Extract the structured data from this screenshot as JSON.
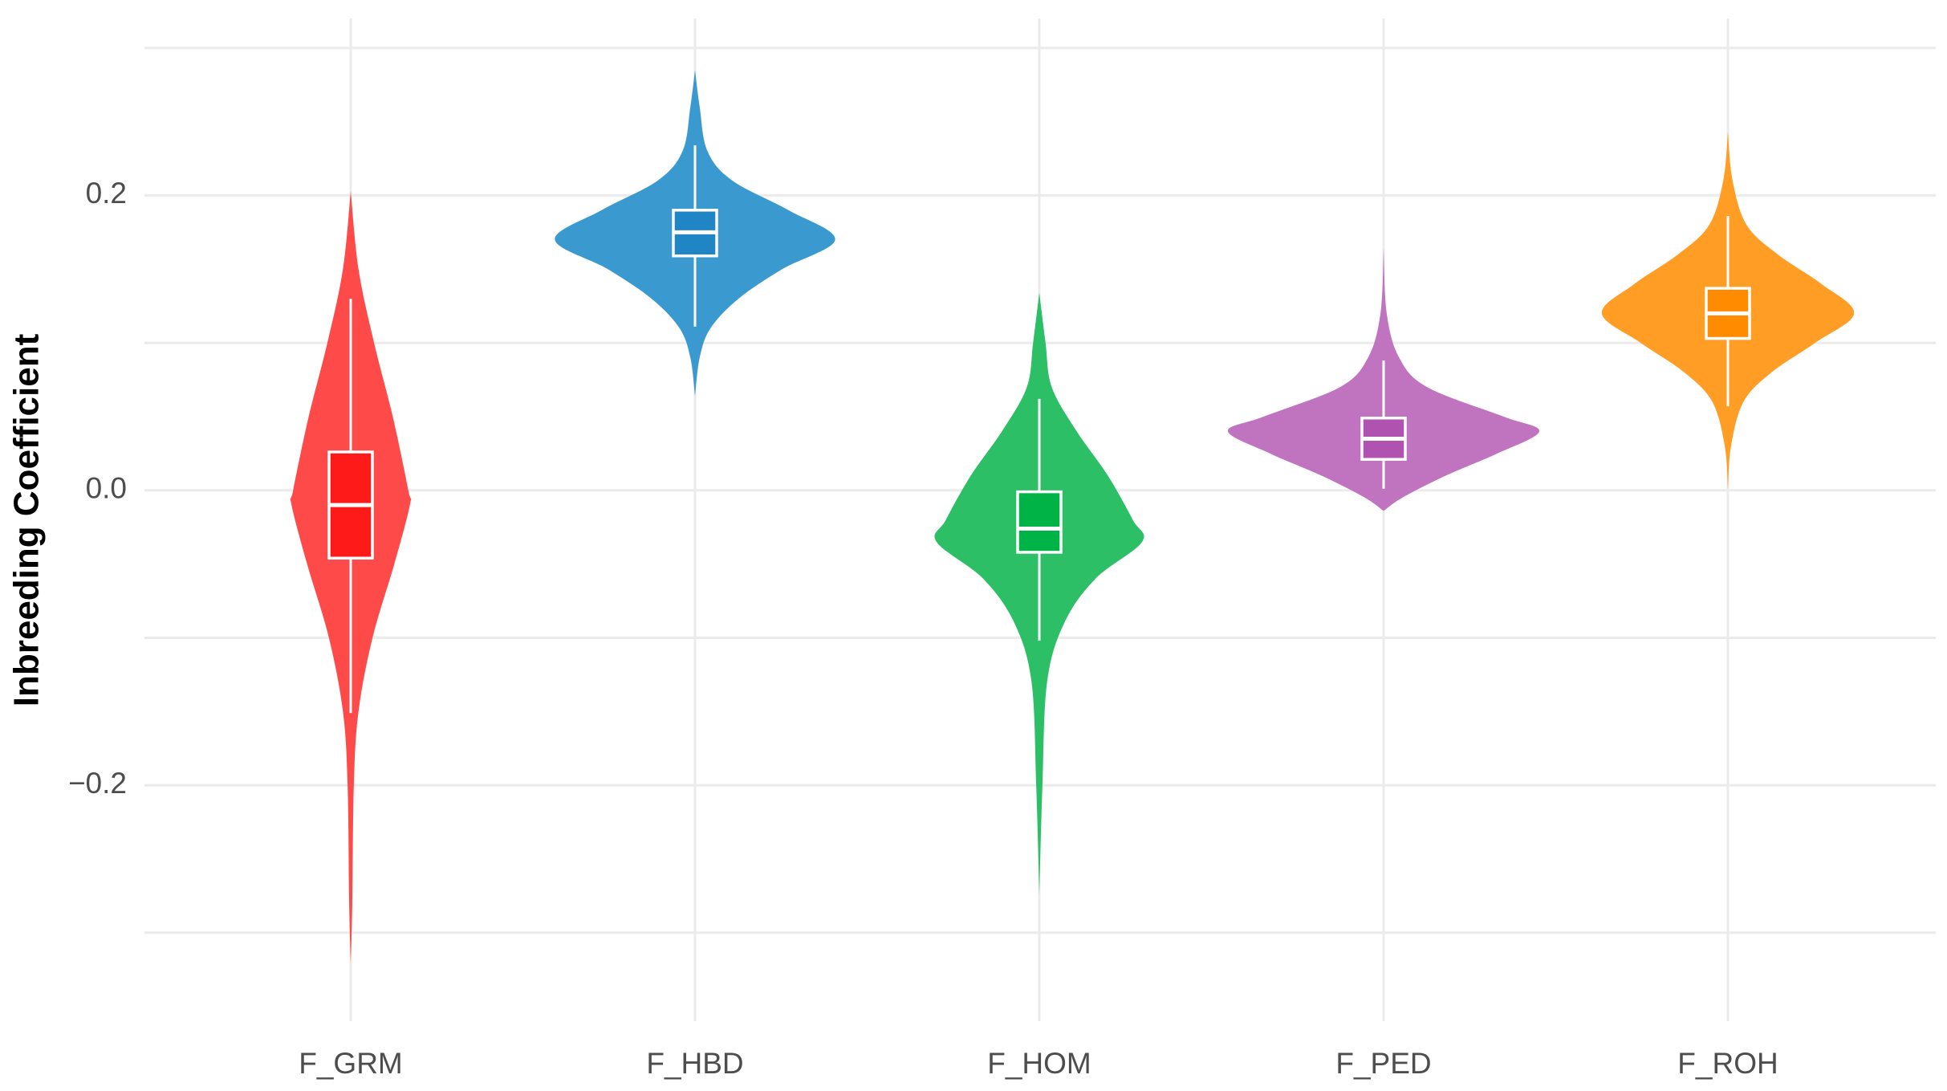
{
  "chart_data": {
    "type": "violin",
    "y_label": "Inbreeding Coefficient",
    "categories": [
      "F_GRM",
      "F_HBD",
      "F_HOM",
      "F_PED",
      "F_ROH"
    ],
    "colors": [
      "#ff4a4a",
      "#3a9ad0",
      "#2dbf66",
      "#c074c0",
      "#ff9d25"
    ],
    "box_colors": [
      "#ff1a1a",
      "#1f85c4",
      "#00b347",
      "#b052b0",
      "#ff8c00"
    ],
    "whisker_high": [
      0.13,
      0.234,
      0.062,
      0.088,
      0.186
    ],
    "q3": [
      0.026,
      0.19,
      -0.001,
      0.049,
      0.137
    ],
    "median": [
      -0.01,
      0.175,
      -0.026,
      0.035,
      0.12
    ],
    "q1": [
      -0.046,
      0.159,
      -0.042,
      0.021,
      0.103
    ],
    "whisker_low": [
      -0.151,
      0.111,
      -0.102,
      0.001,
      0.057
    ],
    "density_y": [
      [
        0.203,
        0.15,
        0.1,
        0.05,
        0.0,
        -0.01,
        -0.05,
        -0.1,
        -0.15,
        -0.2,
        -0.28,
        -0.321
      ],
      [
        0.285,
        0.26,
        0.23,
        0.21,
        0.19,
        0.17,
        0.15,
        0.13,
        0.11,
        0.09,
        0.064
      ],
      [
        0.134,
        0.1,
        0.07,
        0.04,
        0.01,
        -0.02,
        -0.035,
        -0.06,
        -0.09,
        -0.13,
        -0.2,
        -0.274
      ],
      [
        0.164,
        0.12,
        0.09,
        0.07,
        0.05,
        0.04,
        0.025,
        0.01,
        -0.005,
        -0.014
      ],
      [
        0.243,
        0.21,
        0.18,
        0.16,
        0.14,
        0.12,
        0.1,
        0.08,
        0.06,
        0.03,
        0.001
      ]
    ],
    "density": [
      [
        0,
        0.05,
        0.15,
        0.27,
        0.37,
        0.38,
        0.28,
        0.14,
        0.05,
        0.02,
        0.01,
        0
      ],
      [
        0,
        0.03,
        0.08,
        0.24,
        0.6,
        0.9,
        0.56,
        0.28,
        0.1,
        0.03,
        0
      ],
      [
        0,
        0.04,
        0.08,
        0.24,
        0.44,
        0.6,
        0.66,
        0.36,
        0.16,
        0.05,
        0.02,
        0
      ],
      [
        0,
        0.02,
        0.1,
        0.28,
        0.77,
        1,
        0.73,
        0.4,
        0.12,
        0
      ],
      [
        0,
        0.03,
        0.12,
        0.32,
        0.6,
        0.81,
        0.56,
        0.28,
        0.1,
        0.02,
        0
      ]
    ],
    "ylim": [
      -0.36,
      0.32
    ],
    "yticks": [
      {
        "value": -0.2,
        "label": "−0.2"
      },
      {
        "value": 0,
        "label": "0.0"
      },
      0.2
    ],
    "minor_yticks": [
      -0.3,
      -0.1,
      0.1,
      0.3
    ],
    "grid": true
  }
}
